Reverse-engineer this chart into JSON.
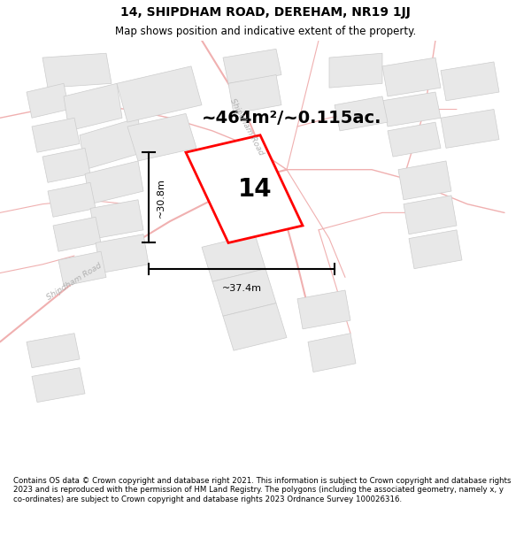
{
  "title": "14, SHIPDHAM ROAD, DEREHAM, NR19 1JJ",
  "subtitle": "Map shows position and indicative extent of the property.",
  "area_label": "~464m²/~0.115ac.",
  "number_label": "14",
  "width_label": "~37.4m",
  "height_label": "~30.8m",
  "footer_text": "Contains OS data © Crown copyright and database right 2021. This information is subject to Crown copyright and database rights 2023 and is reproduced with the permission of HM Land Registry. The polygons (including the associated geometry, namely x, y co-ordinates) are subject to Crown copyright and database rights 2023 Ordnance Survey 100026316.",
  "map_bg": "#ffffff",
  "road_color": "#f0b0b0",
  "road_outline": "#e89898",
  "building_color": "#e8e8e8",
  "building_edge_color": "#cccccc",
  "highlight_color": "#ff0000",
  "road_label_color": "#b0b0b0",
  "title_fontsize": 10,
  "subtitle_fontsize": 8.5,
  "area_fontsize": 14,
  "number_fontsize": 20,
  "footer_fontsize": 6.2
}
